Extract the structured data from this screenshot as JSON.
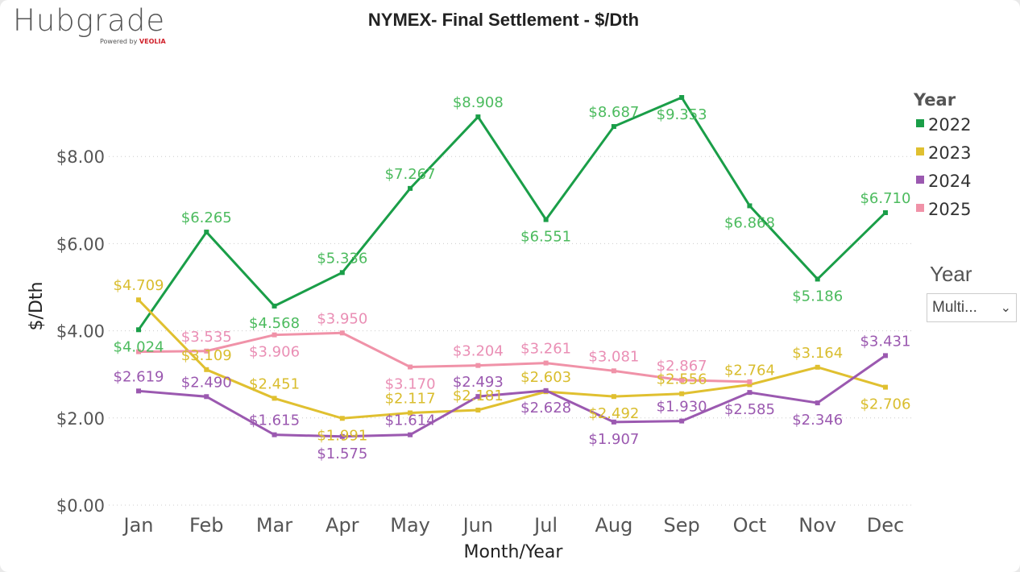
{
  "logo": {
    "name": "Hubgrade",
    "powered": "Powered by",
    "brand": "VEOLIA"
  },
  "chart_data": {
    "type": "line",
    "title": "NYMEX- Final Settlement - $/Dth",
    "xlabel": "Month/Year",
    "ylabel": "$/Dth",
    "categories": [
      "Jan",
      "Feb",
      "Mar",
      "Apr",
      "May",
      "Jun",
      "Jul",
      "Aug",
      "Sep",
      "Oct",
      "Nov",
      "Dec"
    ],
    "yticks": [
      "$0.00",
      "$2.00",
      "$4.00",
      "$6.00",
      "$8.00"
    ],
    "ylim": [
      0,
      10
    ],
    "grid": true,
    "legend": {
      "title": "Year",
      "position": "right"
    },
    "series": [
      {
        "name": "2022",
        "color": "#1a9e48",
        "label_color": "#4cbb5e",
        "values": [
          4.024,
          6.265,
          4.568,
          5.336,
          7.267,
          8.908,
          6.551,
          8.687,
          9.353,
          6.868,
          5.186,
          6.71
        ],
        "labels": [
          "$4.024",
          "$6.265",
          "$4.568",
          "$5.336",
          "$7.267",
          "$8.908",
          "$6.551",
          "$8.687",
          "$9.353",
          "$6.868",
          "$5.186",
          "$6.710"
        ]
      },
      {
        "name": "2023",
        "color": "#e0c030",
        "label_color": "#d9bd2e",
        "values": [
          4.709,
          3.109,
          2.451,
          1.991,
          2.117,
          2.181,
          2.603,
          2.492,
          2.556,
          2.764,
          3.164,
          2.706
        ],
        "labels": [
          "$4.709",
          "$3.109",
          "$2.451",
          "$1.991",
          "$2.117",
          "$2.181",
          "$2.603",
          "$2.492",
          "$2.556",
          "$2.764",
          "$3.164",
          "$2.706"
        ]
      },
      {
        "name": "2024",
        "color": "#9b59b0",
        "label_color": "#9b59b0",
        "values": [
          2.619,
          2.49,
          1.615,
          1.575,
          1.614,
          2.493,
          2.628,
          1.907,
          1.93,
          2.585,
          2.346,
          3.431
        ],
        "labels": [
          "$2.619",
          "$2.490",
          "$1.615",
          "$1.575",
          "$1.614",
          "$2.493",
          "$2.628",
          "$1.907",
          "$1.930",
          "$2.585",
          "$2.346",
          "$3.431"
        ]
      },
      {
        "name": "2025",
        "color": "#f092a8",
        "label_color": "#ea8fb5",
        "values": [
          3.52,
          3.535,
          3.906,
          3.95,
          3.17,
          3.204,
          3.261,
          3.081,
          2.867,
          2.83,
          null,
          null
        ],
        "labels": [
          null,
          "$3.535",
          "$3.906",
          "$3.950",
          "$3.170",
          "$3.204",
          "$3.261",
          "$3.081",
          "$2.867",
          null,
          null,
          null
        ]
      }
    ]
  },
  "slicer": {
    "label": "Year",
    "value": "Multi..."
  }
}
